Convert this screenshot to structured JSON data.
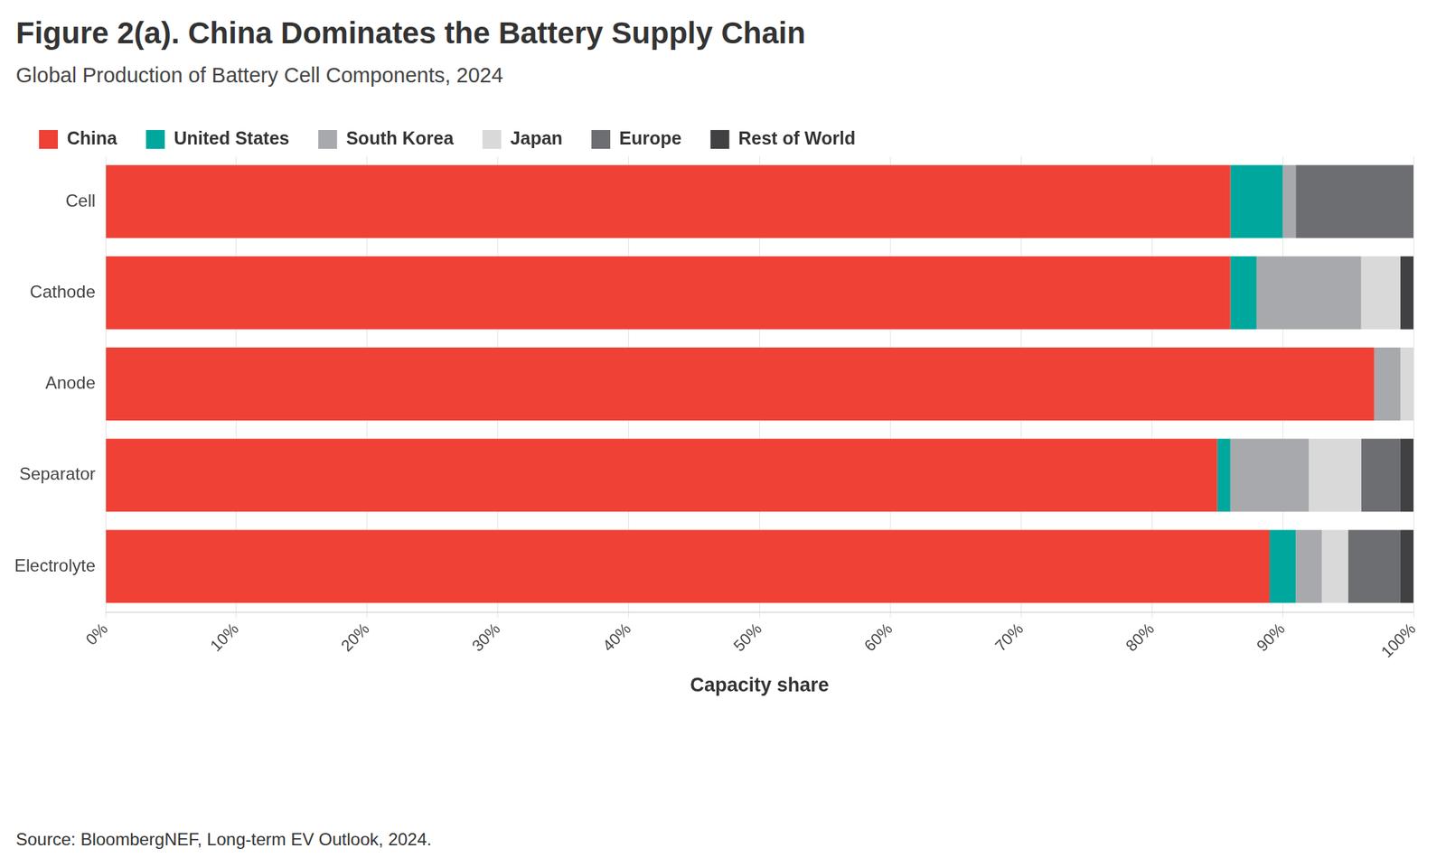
{
  "chart_data": {
    "type": "bar",
    "title": "Figure 2(a). China Dominates the Battery Supply Chain",
    "subtitle": "Global Production of Battery Cell Components, 2024",
    "source": "Source: BloombergNEF, Long-term EV Outlook, 2024.",
    "x_label": "Capacity share",
    "orientation": "horizontal",
    "stacked": true,
    "grid": true,
    "legend": "top-left",
    "categories": [
      "Cell",
      "Cathode",
      "Anode",
      "Separator",
      "Electrolyte"
    ],
    "series": [
      {
        "name": "China",
        "color": "#ef4136",
        "values": [
          86,
          86,
          97,
          85,
          89
        ]
      },
      {
        "name": "United States",
        "color": "#00a79d",
        "values": [
          4,
          2,
          0,
          1,
          2
        ]
      },
      {
        "name": "South Korea",
        "color": "#a7a9ac",
        "values": [
          1,
          8,
          2,
          6,
          2
        ]
      },
      {
        "name": "Japan",
        "color": "#d9d9d9",
        "values": [
          0,
          3,
          1,
          4,
          2
        ]
      },
      {
        "name": "Europe",
        "color": "#6d6e71",
        "values": [
          9,
          0,
          0,
          3,
          4
        ]
      },
      {
        "name": "Rest of World",
        "color": "#414042",
        "values": [
          0,
          1,
          0,
          1,
          1
        ]
      }
    ],
    "xlim": [
      0,
      100
    ],
    "xticks": [
      {
        "value": 0,
        "label": "0%"
      },
      {
        "value": 10,
        "label": "10%"
      },
      {
        "value": 20,
        "label": "20%"
      },
      {
        "value": 30,
        "label": "30%"
      },
      {
        "value": 40,
        "label": "40%"
      },
      {
        "value": 50,
        "label": "50%"
      },
      {
        "value": 60,
        "label": "60%"
      },
      {
        "value": 70,
        "label": "70%"
      },
      {
        "value": 80,
        "label": "80%"
      },
      {
        "value": 90,
        "label": "90%"
      },
      {
        "value": 100,
        "label": "100%"
      }
    ]
  }
}
